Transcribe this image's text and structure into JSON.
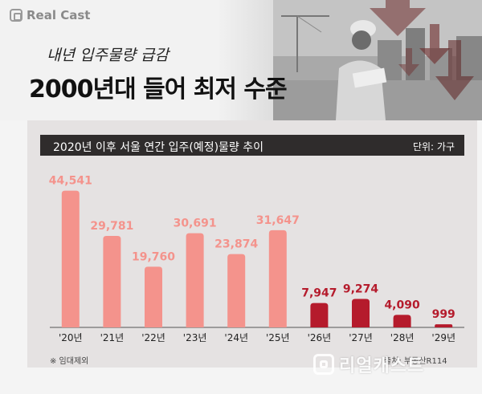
{
  "brand": {
    "name": "Real Cast"
  },
  "header": {
    "subtitle": "내년 입주물량 급감",
    "title": "2000년대 들어 최저 수준"
  },
  "chart_data": {
    "type": "bar",
    "title": "2020년 이후 서울 연간 입주(예정)물량 추이",
    "unit": "단위: 가구",
    "categories": [
      "'20년",
      "'21년",
      "'22년",
      "'23년",
      "'24년",
      "'25년",
      "'26년",
      "'27년",
      "'28년",
      "'29년"
    ],
    "values": [
      44541,
      29781,
      19760,
      30691,
      23874,
      31647,
      7947,
      9274,
      4090,
      999
    ],
    "value_labels": [
      "44,541",
      "29,781",
      "19,760",
      "30,691",
      "23,874",
      "31,647",
      "7,947",
      "9,274",
      "4,090",
      "999"
    ],
    "ylim": [
      0,
      46000
    ],
    "grid": false,
    "legend": "none",
    "colors": {
      "actual": "#f4938c",
      "forecast": "#b51b2c"
    },
    "forecast_from_index": 6
  },
  "footer": {
    "note": "※ 임대제외",
    "source": "출처: 부동산R114"
  },
  "watermark": {
    "text": "리얼캐스트"
  }
}
